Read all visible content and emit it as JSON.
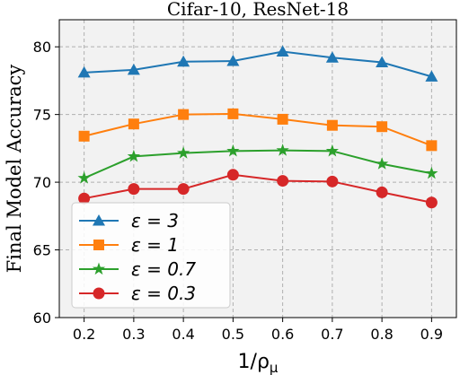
{
  "chart_data": {
    "type": "line",
    "title": "Cifar-10, ResNet-18",
    "xlabel": "1/ρ_μ",
    "ylabel": "Final Model Accuracy",
    "x": [
      0.2,
      0.3,
      0.4,
      0.5,
      0.6,
      0.7,
      0.8,
      0.9
    ],
    "x_tick_labels": [
      "0.2",
      "0.3",
      "0.4",
      "0.5",
      "0.6",
      "0.7",
      "0.8",
      "0.9"
    ],
    "xlim": [
      0.15,
      0.95
    ],
    "ylim": [
      60,
      82
    ],
    "y_ticks": [
      60,
      65,
      70,
      75,
      80
    ],
    "y_tick_labels": [
      "60",
      "65",
      "70",
      "75",
      "80"
    ],
    "grid": true,
    "legend_position": "lower-left",
    "series": [
      {
        "name": "ε = 3",
        "marker": "triangle",
        "color": "#1f77b4",
        "values": [
          78.1,
          78.3,
          78.9,
          78.95,
          79.65,
          79.2,
          78.85,
          77.8
        ]
      },
      {
        "name": "ε = 1",
        "marker": "square",
        "color": "#ff7f0e",
        "values": [
          73.4,
          74.3,
          75.0,
          75.05,
          74.65,
          74.2,
          74.1,
          72.7
        ]
      },
      {
        "name": "ε = 0.7",
        "marker": "star",
        "color": "#2ca02c",
        "values": [
          70.3,
          71.9,
          72.15,
          72.3,
          72.35,
          72.3,
          71.35,
          70.65
        ]
      },
      {
        "name": "ε = 0.3",
        "marker": "circle",
        "color": "#d62728",
        "values": [
          68.8,
          69.5,
          69.5,
          70.55,
          70.1,
          70.05,
          69.25,
          68.5
        ]
      }
    ]
  }
}
